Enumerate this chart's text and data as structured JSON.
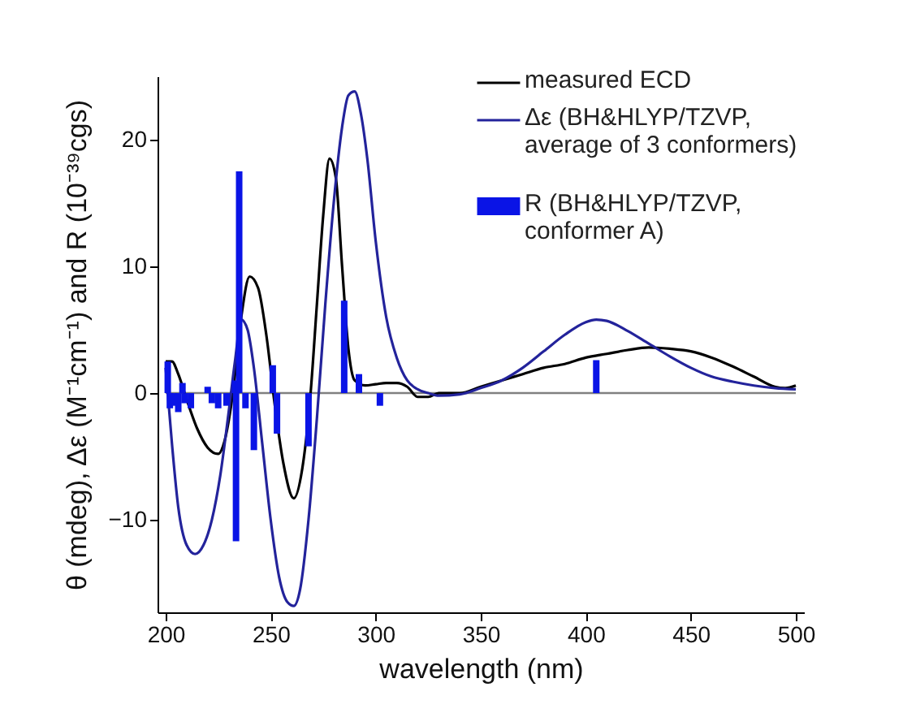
{
  "chart_data": {
    "type": "line",
    "xlabel": "wavelength (nm)",
    "ylabel": "θ (mdeg), Δε (M⁻¹cm⁻¹) and R (10⁻³⁹cgs)",
    "xlim": [
      200,
      500
    ],
    "ylim": [
      -17.3,
      25
    ],
    "xticks": [
      200,
      250,
      300,
      350,
      400,
      450,
      500
    ],
    "yticks": [
      -10,
      0,
      10,
      20
    ],
    "legend": "top right",
    "grid": false,
    "ref_lines": [
      {
        "axis": "y",
        "value": 0,
        "color": "#808080"
      }
    ],
    "series": [
      {
        "name": "measured ECD",
        "color": "#000000",
        "x": [
          200,
          203,
          206,
          210,
          215,
          220,
          225,
          228,
          232,
          236,
          240,
          244,
          248,
          252,
          256,
          261,
          265,
          269,
          272,
          275,
          278,
          281,
          284,
          287,
          290,
          295,
          300,
          305,
          310,
          315,
          320,
          325,
          330,
          340,
          350,
          360,
          370,
          380,
          390,
          400,
          410,
          420,
          430,
          440,
          450,
          460,
          470,
          480,
          490,
          495,
          500
        ],
        "values": [
          2.5,
          2.5,
          1.5,
          -0.5,
          -2.8,
          -4.3,
          -4.8,
          -3.8,
          0,
          6,
          9.2,
          8.3,
          4.5,
          -1,
          -5.5,
          -8.3,
          -6,
          0,
          7,
          14,
          18.5,
          17,
          10,
          3.5,
          1,
          0.6,
          0.7,
          0.8,
          0.8,
          0.5,
          -0.3,
          -0.3,
          0,
          0,
          0.5,
          1,
          1.5,
          2,
          2.3,
          2.8,
          3.1,
          3.4,
          3.6,
          3.5,
          3.3,
          2.8,
          2.1,
          1.3,
          0.5,
          0.4,
          0.6
        ]
      },
      {
        "name": "Δε (BH&HLYP/TZVP, average of 3 conformers)",
        "color": "#23239b",
        "x": [
          200,
          203,
          206,
          210,
          214,
          218,
          222,
          226,
          230,
          233,
          236,
          239,
          242,
          246,
          250,
          254,
          258,
          261,
          264,
          268,
          272,
          276,
          280,
          284,
          287,
          290,
          293,
          296,
          300,
          305,
          310,
          315,
          320,
          325,
          330,
          340,
          350,
          360,
          370,
          380,
          390,
          400,
          405,
          410,
          420,
          430,
          440,
          450,
          460,
          470,
          480,
          490,
          500
        ],
        "values": [
          2,
          -4,
          -9,
          -12,
          -12.7,
          -12,
          -10,
          -6.5,
          -1.5,
          2.5,
          5.8,
          5,
          2,
          -4,
          -10,
          -14.5,
          -16.5,
          -16.8,
          -15.5,
          -10,
          -2,
          7,
          15,
          21,
          23.5,
          23.8,
          22,
          18.5,
          12,
          6,
          2.8,
          1,
          0.3,
          0,
          -0.2,
          -0.1,
          0.4,
          1,
          2,
          3.3,
          4.6,
          5.6,
          5.8,
          5.7,
          4.9,
          3.9,
          2.9,
          2,
          1.3,
          0.9,
          0.6,
          0.4,
          0.3
        ]
      },
      {
        "name": "R (BH&HLYP/TZVP, conformer A)",
        "type": "bar",
        "color": "#0a14e6",
        "x": [
          201,
          202,
          204,
          206,
          208,
          209,
          212,
          220,
          222,
          225,
          229,
          233,
          233.5,
          235,
          238,
          242,
          251,
          253,
          268,
          285,
          292,
          302,
          405
        ],
        "values": [
          2.5,
          -1.2,
          -1,
          -1.5,
          0.8,
          -0.8,
          -1.2,
          0.5,
          -0.8,
          -1.2,
          -1,
          1,
          -11.7,
          17.5,
          -1.2,
          -4.5,
          2.2,
          -3.2,
          -4.2,
          7.3,
          1.5,
          -1,
          2.6
        ]
      }
    ]
  }
}
